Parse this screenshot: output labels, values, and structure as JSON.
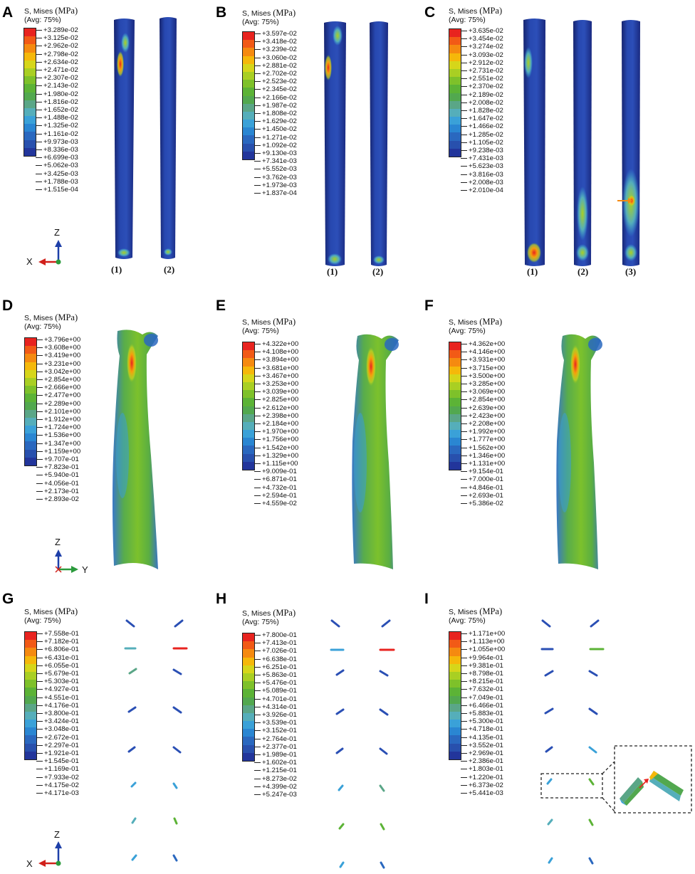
{
  "legend_header": {
    "line1": "S, Mises",
    "unit": "(MPa)",
    "line2": "(Avg: 75%)"
  },
  "colors": [
    "#e8231f",
    "#f25a16",
    "#f58a10",
    "#f5b80a",
    "#d6d61a",
    "#a9cf23",
    "#7ec12a",
    "#5cb336",
    "#52a84f",
    "#5aa687",
    "#55aeba",
    "#3aa1d8",
    "#2a86d2",
    "#2a68bf",
    "#2850ad",
    "#22359b"
  ],
  "panels": [
    {
      "id": "A",
      "values": [
        "+3.289e-02",
        "+3.125e-02",
        "+2.962e-02",
        "+2.798e-02",
        "+2.634e-02",
        "+2.471e-02",
        "+2.307e-02",
        "+2.143e-02",
        "+1.980e-02",
        "+1.816e-02",
        "+1.652e-02",
        "+1.488e-02",
        "+1.325e-02",
        "+1.161e-02",
        "+9.973e-03",
        "+8.336e-03",
        "+6.699e-03",
        "+5.062e-03",
        "+3.425e-03",
        "+1.788e-03",
        "+1.515e-04"
      ],
      "sublabels": [
        "(1)",
        "(2)"
      ]
    },
    {
      "id": "B",
      "values": [
        "+3.597e-02",
        "+3.418e-02",
        "+3.239e-02",
        "+3.060e-02",
        "+2.881e-02",
        "+2.702e-02",
        "+2.523e-02",
        "+2.345e-02",
        "+2.166e-02",
        "+1.987e-02",
        "+1.808e-02",
        "+1.629e-02",
        "+1.450e-02",
        "+1.271e-02",
        "+1.092e-02",
        "+9.130e-03",
        "+7.341e-03",
        "+5.552e-03",
        "+3.762e-03",
        "+1.973e-03",
        "+1.837e-04"
      ],
      "sublabels": [
        "(1)",
        "(2)"
      ]
    },
    {
      "id": "C",
      "values": [
        "+3.635e-02",
        "+3.454e-02",
        "+3.274e-02",
        "+3.093e-02",
        "+2.912e-02",
        "+2.731e-02",
        "+2.551e-02",
        "+2.370e-02",
        "+2.189e-02",
        "+2.008e-02",
        "+1.828e-02",
        "+1.647e-02",
        "+1.466e-02",
        "+1.285e-02",
        "+1.105e-02",
        "+9.238e-03",
        "+7.431e-03",
        "+5.623e-03",
        "+3.816e-03",
        "+2.008e-03",
        "+2.010e-04"
      ],
      "sublabels": [
        "(1)",
        "(2)",
        "(3)"
      ]
    },
    {
      "id": "D",
      "values": [
        "+3.796e+00",
        "+3.608e+00",
        "+3.419e+00",
        "+3.231e+00",
        "+3.042e+00",
        "+2.854e+00",
        "+2.666e+00",
        "+2.477e+00",
        "+2.289e+00",
        "+2.101e+00",
        "+1.912e+00",
        "+1.724e+00",
        "+1.536e+00",
        "+1.347e+00",
        "+1.159e+00",
        "+9.707e-01",
        "+7.823e-01",
        "+5.940e-01",
        "+4.056e-01",
        "+2.173e-01",
        "+2.893e-02"
      ]
    },
    {
      "id": "E",
      "values": [
        "+4.322e+00",
        "+4.108e+00",
        "+3.894e+00",
        "+3.681e+00",
        "+3.467e+00",
        "+3.253e+00",
        "+3.039e+00",
        "+2.825e+00",
        "+2.612e+00",
        "+2.398e+00",
        "+2.184e+00",
        "+1.970e+00",
        "+1.756e+00",
        "+1.542e+00",
        "+1.329e+00",
        "+1.115e+00",
        "+9.009e-01",
        "+6.871e-01",
        "+4.732e-01",
        "+2.594e-01",
        "+4.559e-02"
      ]
    },
    {
      "id": "F",
      "values": [
        "+4.362e+00",
        "+4.146e+00",
        "+3.931e+00",
        "+3.715e+00",
        "+3.500e+00",
        "+3.285e+00",
        "+3.069e+00",
        "+2.854e+00",
        "+2.639e+00",
        "+2.423e+00",
        "+2.208e+00",
        "+1.992e+00",
        "+1.777e+00",
        "+1.562e+00",
        "+1.346e+00",
        "+1.131e+00",
        "+9.154e-01",
        "+7.000e-01",
        "+4.846e-01",
        "+2.693e-01",
        "+5.386e-02"
      ]
    },
    {
      "id": "G",
      "values": [
        "+7.558e-01",
        "+7.182e-01",
        "+6.806e-01",
        "+6.431e-01",
        "+6.055e-01",
        "+5.679e-01",
        "+5.303e-01",
        "+4.927e-01",
        "+4.551e-01",
        "+4.176e-01",
        "+3.800e-01",
        "+3.424e-01",
        "+3.048e-01",
        "+2.672e-01",
        "+2.297e-01",
        "+1.921e-01",
        "+1.545e-01",
        "+1.169e-01",
        "+7.933e-02",
        "+4.175e-02",
        "+4.171e-03"
      ]
    },
    {
      "id": "H",
      "values": [
        "+7.800e-01",
        "+7.413e-01",
        "+7.026e-01",
        "+6.638e-01",
        "+6.251e-01",
        "+5.863e-01",
        "+5.476e-01",
        "+5.089e-01",
        "+4.701e-01",
        "+4.314e-01",
        "+3.926e-01",
        "+3.539e-01",
        "+3.152e-01",
        "+2.764e-01",
        "+2.377e-01",
        "+1.989e-01",
        "+1.602e-01",
        "+1.215e-01",
        "+8.273e-02",
        "+4.399e-02",
        "+5.247e-03"
      ]
    },
    {
      "id": "I",
      "values": [
        "+1.171e+00",
        "+1.113e+00",
        "+1.055e+00",
        "+9.964e-01",
        "+9.381e-01",
        "+8.798e-01",
        "+8.215e-01",
        "+7.632e-01",
        "+7.049e-01",
        "+6.466e-01",
        "+5.883e-01",
        "+5.300e-01",
        "+4.718e-01",
        "+4.135e-01",
        "+3.552e-01",
        "+2.969e-01",
        "+2.386e-01",
        "+1.803e-01",
        "+1.220e-01",
        "+6.373e-02",
        "+5.441e-03"
      ]
    }
  ],
  "triads": [
    {
      "up": "Z",
      "left": "X"
    },
    {
      "up": "Z",
      "right": "Y"
    },
    {
      "up": "Z",
      "left": "X"
    }
  ]
}
